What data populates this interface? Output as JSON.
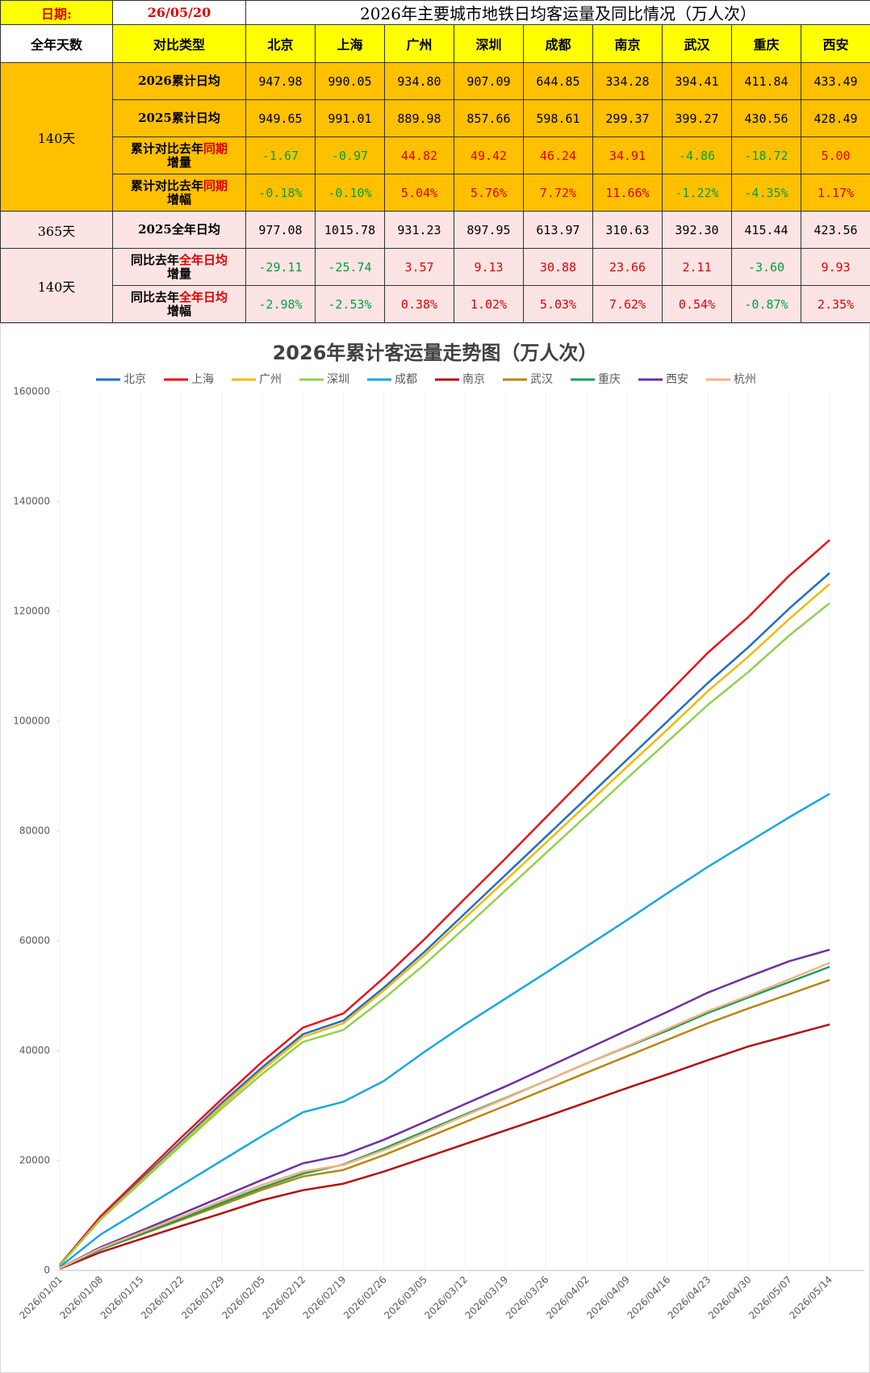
{
  "table": {
    "date_label": "日期:",
    "date": "26/05/20",
    "title": "2026年主要城市地铁日均客运量及同比情况（万人次）",
    "header": {
      "days": "全年天数",
      "type": "对比类型",
      "cities": [
        "北京",
        "上海",
        "广州",
        "深圳",
        "成都",
        "南京",
        "武汉",
        "重庆",
        "西安"
      ]
    },
    "groups": [
      {
        "days": "140天",
        "rows": [
          {
            "label": [
              "2026累计日均"
            ],
            "values": [
              "947.98",
              "990.05",
              "934.80",
              "907.09",
              "644.85",
              "334.28",
              "394.41",
              "411.84",
              "433.49"
            ]
          },
          {
            "label": [
              "2025累计日均"
            ],
            "values": [
              "949.65",
              "991.01",
              "889.98",
              "857.66",
              "598.61",
              "299.37",
              "399.27",
              "430.56",
              "428.49"
            ]
          },
          {
            "label": [
              "累计对比去年",
              "同期",
              "增量"
            ],
            "values": [
              "-1.67",
              "-0.97",
              "44.82",
              "49.42",
              "46.24",
              "34.91",
              "-4.86",
              "-18.72",
              "5.00"
            ]
          },
          {
            "label": [
              "累计对比去年",
              "同期",
              "增幅"
            ],
            "values": [
              "-0.18%",
              "-0.10%",
              "5.04%",
              "5.76%",
              "7.72%",
              "11.66%",
              "-1.22%",
              "-4.35%",
              "1.17%"
            ]
          }
        ]
      },
      {
        "days": "365天",
        "rows": [
          {
            "label": [
              "2025全年日均"
            ],
            "values": [
              "977.08",
              "1015.78",
              "931.23",
              "897.95",
              "613.97",
              "310.63",
              "392.30",
              "415.44",
              "423.56"
            ]
          }
        ]
      },
      {
        "days": "140天",
        "rows": [
          {
            "label": [
              "同比去年",
              "全年日均",
              "增量"
            ],
            "values": [
              "-29.11",
              "-25.74",
              "3.57",
              "9.13",
              "30.88",
              "23.66",
              "2.11",
              "-3.60",
              "9.93"
            ]
          },
          {
            "label": [
              "同比去年",
              "全年日均",
              "增幅"
            ],
            "values": [
              "-2.98%",
              "-2.53%",
              "0.38%",
              "1.02%",
              "5.03%",
              "7.62%",
              "0.54%",
              "-0.87%",
              "2.35%"
            ]
          }
        ]
      }
    ]
  },
  "chart_data": {
    "type": "line",
    "title": "2026年累计客运量走势图（万人次）",
    "x": [
      "2026/01/01",
      "2026/01/08",
      "2026/01/15",
      "2026/01/22",
      "2026/01/29",
      "2026/02/05",
      "2026/02/12",
      "2026/02/19",
      "2026/02/26",
      "2026/03/05",
      "2026/03/12",
      "2026/03/19",
      "2026/03/26",
      "2026/04/02",
      "2026/04/09",
      "2026/04/16",
      "2026/04/23",
      "2026/04/30",
      "2026/05/07",
      "2026/05/14"
    ],
    "ylim": [
      0,
      160000
    ],
    "yticks": [
      0,
      20000,
      40000,
      60000,
      80000,
      100000,
      120000,
      140000,
      160000
    ],
    "series": [
      {
        "name": "北京",
        "color": "#1f6fbf",
        "values": [
          900,
          9500,
          16500,
          23500,
          30500,
          37000,
          43000,
          45500,
          51500,
          58000,
          65000,
          72000,
          79000,
          86000,
          93000,
          100000,
          107000,
          113500,
          120500,
          127000
        ]
      },
      {
        "name": "上海",
        "color": "#e8141c",
        "values": [
          1000,
          9800,
          17000,
          24200,
          31200,
          38000,
          44200,
          46800,
          53300,
          60300,
          67700,
          75000,
          82500,
          90000,
          97500,
          105000,
          112500,
          119000,
          126500,
          133000
        ]
      },
      {
        "name": "广州",
        "color": "#f5b800",
        "values": [
          900,
          9300,
          16200,
          23100,
          30000,
          36500,
          42500,
          45000,
          51000,
          57400,
          64200,
          71000,
          77900,
          84800,
          91700,
          98500,
          105500,
          111800,
          118600,
          125000
        ]
      },
      {
        "name": "深圳",
        "color": "#92d050",
        "values": [
          900,
          9200,
          16000,
          22800,
          29500,
          35800,
          41600,
          43800,
          49500,
          55700,
          62400,
          69200,
          76000,
          82800,
          89600,
          96300,
          103000,
          109000,
          115600,
          121500
        ]
      },
      {
        "name": "成都",
        "color": "#1aa7e0",
        "values": [
          600,
          6500,
          11000,
          15500,
          20000,
          24500,
          28800,
          30700,
          34500,
          39800,
          44800,
          49500,
          54200,
          59000,
          63800,
          68700,
          73500,
          78000,
          82500,
          86800
        ]
      },
      {
        "name": "南京",
        "color": "#b01010",
        "values": [
          300,
          3300,
          5700,
          8100,
          10400,
          12800,
          14600,
          15800,
          18000,
          20500,
          23000,
          25500,
          28000,
          30600,
          33200,
          35700,
          38300,
          40800,
          42800,
          44800
        ]
      },
      {
        "name": "武汉",
        "color": "#b8860b",
        "values": [
          400,
          3800,
          6500,
          9200,
          11900,
          14700,
          17100,
          18300,
          21000,
          24000,
          27000,
          30000,
          33000,
          36000,
          39000,
          42000,
          45000,
          47700,
          50300,
          52900
        ]
      },
      {
        "name": "重庆",
        "color": "#1a9e5a",
        "values": [
          400,
          3800,
          6600,
          9400,
          12300,
          15100,
          17600,
          19300,
          22200,
          25300,
          28400,
          31400,
          34500,
          37700,
          40700,
          43700,
          46900,
          49700,
          52500,
          55300
        ]
      },
      {
        "name": "西安",
        "color": "#7030a0",
        "values": [
          400,
          4200,
          7200,
          10300,
          13400,
          16500,
          19500,
          21000,
          23800,
          27000,
          30300,
          33500,
          36900,
          40300,
          43700,
          47100,
          50600,
          53500,
          56300,
          58400
        ]
      },
      {
        "name": "杭州",
        "color": "#f4b183",
        "values": [
          400,
          4000,
          6900,
          9800,
          12700,
          15600,
          18000,
          19200,
          21900,
          25000,
          28200,
          31300,
          34500,
          37700,
          40800,
          44000,
          47200,
          50000,
          53000,
          56000
        ]
      }
    ]
  }
}
